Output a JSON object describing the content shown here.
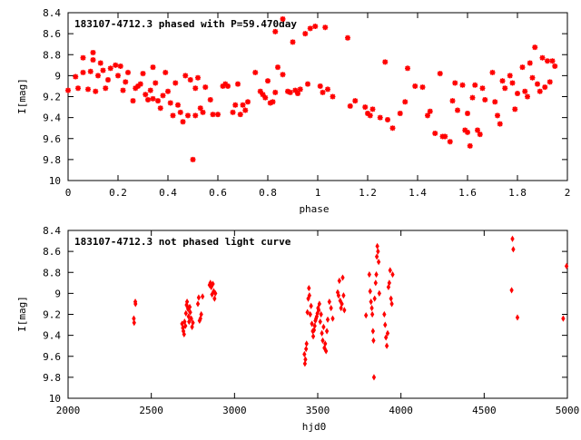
{
  "colors": {
    "points": "#ff0000",
    "axes": "#000000",
    "background": "#ffffff"
  },
  "chart_data": [
    {
      "type": "scatter",
      "title": "183107-4712.3 phased with P=59.470day",
      "xlabel": "phase",
      "ylabel": "I[mag]",
      "xlim": [
        0,
        2
      ],
      "ylim": [
        10,
        8.4
      ],
      "y_inverted": true,
      "grid": false,
      "marker": "star",
      "x_ticks": [
        "0",
        "0.2",
        "0.4",
        "0.6",
        "0.8",
        "1",
        "1.2",
        "1.4",
        "1.6",
        "1.8",
        "2"
      ],
      "x_tick_values": [
        0,
        0.2,
        0.4,
        0.6,
        0.8,
        1,
        1.2,
        1.4,
        1.6,
        1.8,
        2
      ],
      "y_ticks": [
        "8.4",
        "8.6",
        "8.8",
        "9",
        "9.2",
        "9.4",
        "9.6",
        "9.8",
        "10"
      ],
      "y_tick_values": [
        8.4,
        8.6,
        8.8,
        9.0,
        9.2,
        9.4,
        9.6,
        9.8,
        10.0
      ],
      "points": [
        [
          0.0,
          9.14
        ],
        [
          0.03,
          9.01
        ],
        [
          0.04,
          9.12
        ],
        [
          0.06,
          8.83
        ],
        [
          0.06,
          8.97
        ],
        [
          0.08,
          9.13
        ],
        [
          0.09,
          8.96
        ],
        [
          0.1,
          8.78
        ],
        [
          0.1,
          8.85
        ],
        [
          0.11,
          9.15
        ],
        [
          0.12,
          9.0
        ],
        [
          0.13,
          8.88
        ],
        [
          0.14,
          8.95
        ],
        [
          0.15,
          9.12
        ],
        [
          0.16,
          9.04
        ],
        [
          0.17,
          8.93
        ],
        [
          0.19,
          8.9
        ],
        [
          0.2,
          9.0
        ],
        [
          0.21,
          8.91
        ],
        [
          0.22,
          9.14
        ],
        [
          0.23,
          9.06
        ],
        [
          0.24,
          8.97
        ],
        [
          0.26,
          9.24
        ],
        [
          0.27,
          9.12
        ],
        [
          0.28,
          9.1
        ],
        [
          0.29,
          9.08
        ],
        [
          0.3,
          8.98
        ],
        [
          0.31,
          9.18
        ],
        [
          0.32,
          9.23
        ],
        [
          0.33,
          9.14
        ],
        [
          0.34,
          9.22
        ],
        [
          0.34,
          8.92
        ],
        [
          0.35,
          9.07
        ],
        [
          0.36,
          9.24
        ],
        [
          0.37,
          9.31
        ],
        [
          0.38,
          9.19
        ],
        [
          0.39,
          8.97
        ],
        [
          0.4,
          9.15
        ],
        [
          0.41,
          9.26
        ],
        [
          0.42,
          9.38
        ],
        [
          0.43,
          9.07
        ],
        [
          0.44,
          9.28
        ],
        [
          0.45,
          9.35
        ],
        [
          0.46,
          9.44
        ],
        [
          0.47,
          9.0
        ],
        [
          0.48,
          9.38
        ],
        [
          0.49,
          9.04
        ],
        [
          0.5,
          9.8
        ],
        [
          0.51,
          9.12
        ],
        [
          0.51,
          9.38
        ],
        [
          0.52,
          9.02
        ],
        [
          0.53,
          9.31
        ],
        [
          0.54,
          9.35
        ],
        [
          0.55,
          9.11
        ],
        [
          0.57,
          9.23
        ],
        [
          0.58,
          9.37
        ],
        [
          0.6,
          9.37
        ],
        [
          0.62,
          9.1
        ],
        [
          0.63,
          9.08
        ],
        [
          0.64,
          9.1
        ],
        [
          0.66,
          9.35
        ],
        [
          0.67,
          9.28
        ],
        [
          0.68,
          9.08
        ],
        [
          0.69,
          9.37
        ],
        [
          0.7,
          9.28
        ],
        [
          0.71,
          9.33
        ],
        [
          0.72,
          9.25
        ],
        [
          0.75,
          8.97
        ],
        [
          0.77,
          9.15
        ],
        [
          0.78,
          9.18
        ],
        [
          0.79,
          9.21
        ],
        [
          0.8,
          9.05
        ],
        [
          0.81,
          9.26
        ],
        [
          0.82,
          9.25
        ],
        [
          0.83,
          9.16
        ],
        [
          0.83,
          8.58
        ],
        [
          0.84,
          8.92
        ],
        [
          0.86,
          8.46
        ],
        [
          0.86,
          8.99
        ],
        [
          0.88,
          9.15
        ],
        [
          0.89,
          9.16
        ],
        [
          0.9,
          8.68
        ],
        [
          0.91,
          9.14
        ],
        [
          0.92,
          9.17
        ],
        [
          0.93,
          9.13
        ],
        [
          0.95,
          8.6
        ],
        [
          0.96,
          9.08
        ],
        [
          0.97,
          8.55
        ],
        [
          0.99,
          8.53
        ],
        [
          1.01,
          9.1
        ],
        [
          1.02,
          9.16
        ],
        [
          1.03,
          8.54
        ],
        [
          1.04,
          9.13
        ],
        [
          1.06,
          9.2
        ],
        [
          1.12,
          8.64
        ],
        [
          1.13,
          9.29
        ],
        [
          1.15,
          9.24
        ],
        [
          1.19,
          9.3
        ],
        [
          1.2,
          9.36
        ],
        [
          1.21,
          9.38
        ],
        [
          1.22,
          9.32
        ],
        [
          1.25,
          9.4
        ],
        [
          1.27,
          8.87
        ],
        [
          1.28,
          9.42
        ],
        [
          1.3,
          9.5
        ],
        [
          1.33,
          9.36
        ],
        [
          1.35,
          9.25
        ],
        [
          1.36,
          8.93
        ],
        [
          1.39,
          9.1
        ],
        [
          1.42,
          9.11
        ],
        [
          1.44,
          9.38
        ],
        [
          1.45,
          9.34
        ],
        [
          1.47,
          9.55
        ],
        [
          1.49,
          8.98
        ],
        [
          1.5,
          9.58
        ],
        [
          1.51,
          9.58
        ],
        [
          1.53,
          9.63
        ],
        [
          1.54,
          9.24
        ],
        [
          1.55,
          9.07
        ],
        [
          1.56,
          9.33
        ],
        [
          1.58,
          9.09
        ],
        [
          1.59,
          9.52
        ],
        [
          1.6,
          9.54
        ],
        [
          1.6,
          9.36
        ],
        [
          1.61,
          9.67
        ],
        [
          1.62,
          9.21
        ],
        [
          1.63,
          9.09
        ],
        [
          1.64,
          9.52
        ],
        [
          1.65,
          9.56
        ],
        [
          1.66,
          9.12
        ],
        [
          1.67,
          9.23
        ],
        [
          1.7,
          8.97
        ],
        [
          1.71,
          9.25
        ],
        [
          1.72,
          9.38
        ],
        [
          1.73,
          9.46
        ],
        [
          1.74,
          9.05
        ],
        [
          1.75,
          9.12
        ],
        [
          1.77,
          9.0
        ],
        [
          1.78,
          9.07
        ],
        [
          1.79,
          9.32
        ],
        [
          1.8,
          9.17
        ],
        [
          1.82,
          8.92
        ],
        [
          1.83,
          9.15
        ],
        [
          1.84,
          9.2
        ],
        [
          1.85,
          8.88
        ],
        [
          1.86,
          9.02
        ],
        [
          1.87,
          8.73
        ],
        [
          1.88,
          9.08
        ],
        [
          1.89,
          9.15
        ],
        [
          1.9,
          8.83
        ],
        [
          1.91,
          9.11
        ],
        [
          1.92,
          8.86
        ],
        [
          1.93,
          9.06
        ],
        [
          1.94,
          8.86
        ],
        [
          1.95,
          8.91
        ]
      ]
    },
    {
      "type": "scatter",
      "title": "183107-4712.3 not phased light curve",
      "xlabel": "hjd0",
      "ylabel": "I[mag]",
      "xlim": [
        2000,
        5000
      ],
      "ylim": [
        10,
        8.4
      ],
      "y_inverted": true,
      "grid": false,
      "marker": "diamond",
      "x_ticks": [
        "2000",
        "2500",
        "3000",
        "3500",
        "4000",
        "4500",
        "5000"
      ],
      "x_tick_values": [
        2000,
        2500,
        3000,
        3500,
        4000,
        4500,
        5000
      ],
      "y_ticks": [
        "8.4",
        "8.6",
        "8.8",
        "9",
        "9.2",
        "9.4",
        "9.6",
        "9.8",
        "10"
      ],
      "y_tick_values": [
        8.4,
        8.6,
        8.8,
        9.0,
        9.2,
        9.4,
        9.6,
        9.8,
        10.0
      ],
      "points": [
        [
          2395,
          9.24
        ],
        [
          2397,
          9.28
        ],
        [
          2404,
          9.08
        ],
        [
          2405,
          9.1
        ],
        [
          2685,
          9.29
        ],
        [
          2690,
          9.33
        ],
        [
          2693,
          9.36
        ],
        [
          2697,
          9.39
        ],
        [
          2700,
          9.27
        ],
        [
          2705,
          9.31
        ],
        [
          2708,
          9.19
        ],
        [
          2712,
          9.11
        ],
        [
          2715,
          9.08
        ],
        [
          2718,
          9.13
        ],
        [
          2721,
          9.15
        ],
        [
          2724,
          9.22
        ],
        [
          2727,
          9.27
        ],
        [
          2731,
          9.13
        ],
        [
          2734,
          9.18
        ],
        [
          2740,
          9.24
        ],
        [
          2745,
          9.32
        ],
        [
          2750,
          9.28
        ],
        [
          2780,
          9.1
        ],
        [
          2785,
          9.04
        ],
        [
          2790,
          9.26
        ],
        [
          2795,
          9.24
        ],
        [
          2800,
          9.2
        ],
        [
          2808,
          9.03
        ],
        [
          2850,
          8.92
        ],
        [
          2855,
          8.9
        ],
        [
          2860,
          8.94
        ],
        [
          2865,
          9.01
        ],
        [
          2870,
          8.91
        ],
        [
          2875,
          8.98
        ],
        [
          2880,
          9.05
        ],
        [
          2885,
          9.0
        ],
        [
          3420,
          9.58
        ],
        [
          3423,
          9.67
        ],
        [
          3426,
          9.63
        ],
        [
          3430,
          9.53
        ],
        [
          3433,
          9.48
        ],
        [
          3438,
          9.18
        ],
        [
          3443,
          9.05
        ],
        [
          3447,
          8.95
        ],
        [
          3450,
          9.02
        ],
        [
          3455,
          9.2
        ],
        [
          3460,
          9.12
        ],
        [
          3465,
          9.29
        ],
        [
          3470,
          9.36
        ],
        [
          3473,
          9.41
        ],
        [
          3478,
          9.35
        ],
        [
          3482,
          9.31
        ],
        [
          3486,
          9.26
        ],
        [
          3490,
          9.24
        ],
        [
          3494,
          9.22
        ],
        [
          3498,
          9.19
        ],
        [
          3502,
          9.14
        ],
        [
          3506,
          9.16
        ],
        [
          3510,
          9.1
        ],
        [
          3515,
          9.27
        ],
        [
          3520,
          9.2
        ],
        [
          3525,
          9.38
        ],
        [
          3530,
          9.45
        ],
        [
          3535,
          9.32
        ],
        [
          3540,
          9.52
        ],
        [
          3545,
          9.48
        ],
        [
          3550,
          9.55
        ],
        [
          3555,
          9.36
        ],
        [
          3560,
          9.25
        ],
        [
          3570,
          9.08
        ],
        [
          3580,
          9.14
        ],
        [
          3590,
          9.24
        ],
        [
          3620,
          8.99
        ],
        [
          3625,
          9.02
        ],
        [
          3630,
          8.88
        ],
        [
          3635,
          9.07
        ],
        [
          3640,
          9.14
        ],
        [
          3645,
          9.1
        ],
        [
          3650,
          8.85
        ],
        [
          3655,
          9.02
        ],
        [
          3660,
          9.16
        ],
        [
          3790,
          9.21
        ],
        [
          3810,
          8.82
        ],
        [
          3815,
          8.98
        ],
        [
          3820,
          9.08
        ],
        [
          3825,
          9.14
        ],
        [
          3828,
          9.2
        ],
        [
          3832,
          9.36
        ],
        [
          3835,
          9.45
        ],
        [
          3838,
          9.8
        ],
        [
          3842,
          9.05
        ],
        [
          3848,
          8.9
        ],
        [
          3852,
          8.82
        ],
        [
          3855,
          8.65
        ],
        [
          3858,
          8.55
        ],
        [
          3862,
          8.6
        ],
        [
          3866,
          8.7
        ],
        [
          3870,
          9.0
        ],
        [
          3900,
          9.2
        ],
        [
          3905,
          9.3
        ],
        [
          3910,
          9.42
        ],
        [
          3915,
          9.5
        ],
        [
          3920,
          9.38
        ],
        [
          3925,
          8.94
        ],
        [
          3930,
          8.9
        ],
        [
          3935,
          8.78
        ],
        [
          3940,
          9.05
        ],
        [
          3945,
          9.1
        ],
        [
          3950,
          8.82
        ],
        [
          4665,
          8.97
        ],
        [
          4670,
          8.48
        ],
        [
          4675,
          8.58
        ],
        [
          4700,
          9.23
        ],
        [
          4975,
          9.24
        ],
        [
          4995,
          8.74
        ]
      ]
    }
  ]
}
